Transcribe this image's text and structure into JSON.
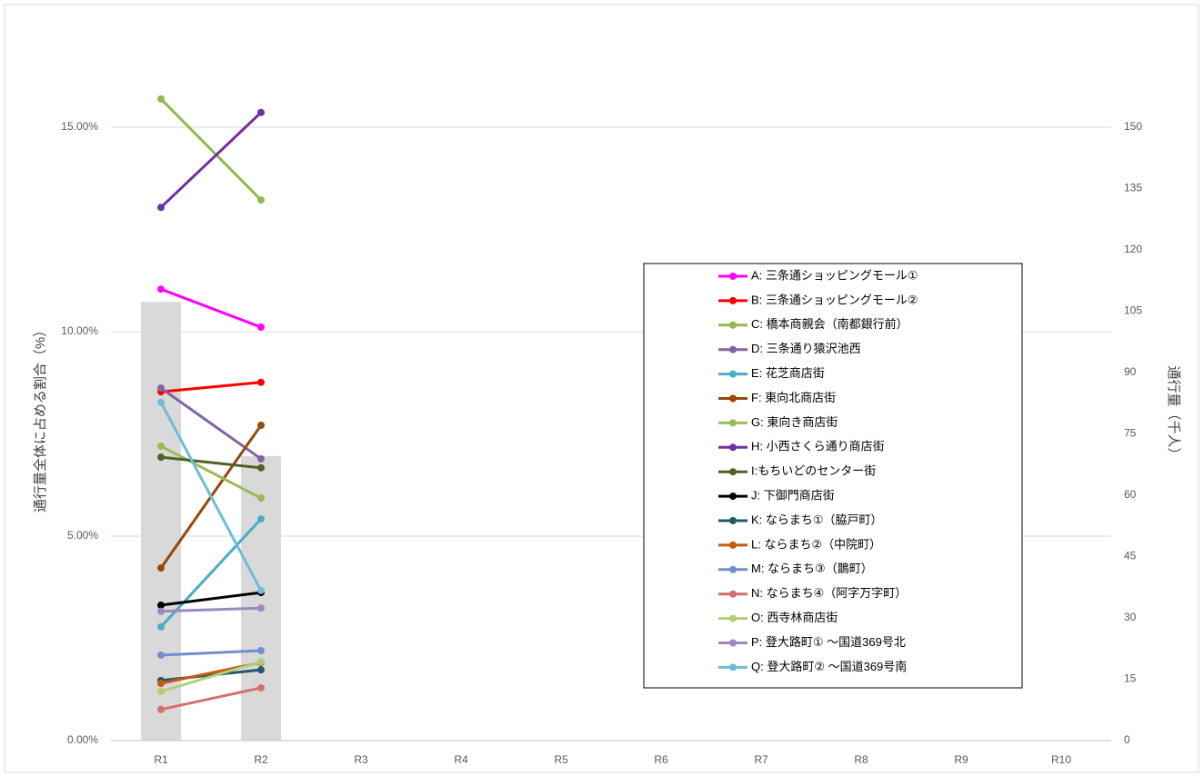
{
  "chart_data": {
    "type": "bar-line",
    "ylabel": "通行量全体に占める割合（%）",
    "y2label": "通行量（千人）",
    "categories": [
      "R1",
      "R2",
      "R3",
      "R4",
      "R5",
      "R6",
      "R7",
      "R8",
      "R9",
      "R10"
    ],
    "ylim": [
      0,
      17
    ],
    "yticks": [
      {
        "value": 0,
        "label": "0.00%"
      },
      {
        "value": 5,
        "label": "5.00%"
      },
      {
        "value": 10,
        "label": "10.00%"
      },
      {
        "value": 15,
        "label": "15.00%"
      }
    ],
    "y2lim": [
      0,
      170
    ],
    "y2ticks": [
      0,
      15,
      30,
      45,
      60,
      75,
      90,
      105,
      120,
      135,
      150
    ],
    "grid": true,
    "legend": "right",
    "bars": {
      "color": "#d9d9d9",
      "axis": "y2",
      "values": [
        107.3,
        69.6,
        null,
        null,
        null,
        null,
        null,
        null,
        null,
        null
      ]
    },
    "series": [
      {
        "name": "A: 三条通ショッピングモール①",
        "color": "#ff00ff",
        "values": [
          11.04,
          10.11,
          null,
          null,
          null,
          null,
          null,
          null,
          null,
          null
        ]
      },
      {
        "name": "B: 三条通ショッピングモール②",
        "color": "#ff0000",
        "values": [
          8.53,
          8.76,
          null,
          null,
          null,
          null,
          null,
          null,
          null,
          null
        ]
      },
      {
        "name": "C: 橋本商親会（南都銀行前）",
        "color": "#92b84f",
        "values": [
          15.69,
          13.22,
          null,
          null,
          null,
          null,
          null,
          null,
          null,
          null
        ]
      },
      {
        "name": "D: 三条通り猿沢池西",
        "color": "#8064a2",
        "values": [
          8.62,
          6.89,
          null,
          null,
          null,
          null,
          null,
          null,
          null,
          null
        ]
      },
      {
        "name": "E: 花芝商店街",
        "color": "#4bacc6",
        "values": [
          2.78,
          5.42,
          null,
          null,
          null,
          null,
          null,
          null,
          null,
          null
        ]
      },
      {
        "name": "F: 東向北商店街",
        "color": "#984807",
        "values": [
          4.22,
          7.71,
          null,
          null,
          null,
          null,
          null,
          null,
          null,
          null
        ]
      },
      {
        "name": "G: 東向き商店街",
        "color": "#9bbb59",
        "values": [
          7.2,
          5.93,
          null,
          null,
          null,
          null,
          null,
          null,
          null,
          null
        ]
      },
      {
        "name": "H: 小西さくら通り商店街",
        "color": "#7030a0",
        "values": [
          13.04,
          15.36,
          null,
          null,
          null,
          null,
          null,
          null,
          null,
          null
        ]
      },
      {
        "name": "I:もちいどのセンター街",
        "color": "#4f6228",
        "values": [
          6.93,
          6.67,
          null,
          null,
          null,
          null,
          null,
          null,
          null,
          null
        ]
      },
      {
        "name": "J: 下御門商店街",
        "color": "#000000",
        "values": [
          3.31,
          3.62,
          null,
          null,
          null,
          null,
          null,
          null,
          null,
          null
        ]
      },
      {
        "name": "K: ならまち①（脇戸町）",
        "color": "#215968",
        "values": [
          1.47,
          1.73,
          null,
          null,
          null,
          null,
          null,
          null,
          null,
          null
        ]
      },
      {
        "name": "L: ならまち②（中院町）",
        "color": "#c55a11",
        "values": [
          1.4,
          1.91,
          null,
          null,
          null,
          null,
          null,
          null,
          null,
          null
        ]
      },
      {
        "name": "M: ならまち③（鵲町）",
        "color": "#6f8fcf",
        "values": [
          2.09,
          2.2,
          null,
          null,
          null,
          null,
          null,
          null,
          null,
          null
        ]
      },
      {
        "name": "N: ならまち④（阿字万字町）",
        "color": "#d46f6d",
        "values": [
          0.76,
          1.29,
          null,
          null,
          null,
          null,
          null,
          null,
          null,
          null
        ]
      },
      {
        "name": "O: 西寺林商店街",
        "color": "#b3cf76",
        "values": [
          1.2,
          1.93,
          null,
          null,
          null,
          null,
          null,
          null,
          null,
          null
        ]
      },
      {
        "name": "P: 登大路町① ～国道369号北",
        "color": "#9e86c0",
        "values": [
          3.16,
          3.24,
          null,
          null,
          null,
          null,
          null,
          null,
          null,
          null
        ]
      },
      {
        "name": "Q: 登大路町② ～国道369号南",
        "color": "#6fbdd6",
        "values": [
          8.27,
          3.67,
          null,
          null,
          null,
          null,
          null,
          null,
          null,
          null
        ]
      }
    ]
  }
}
